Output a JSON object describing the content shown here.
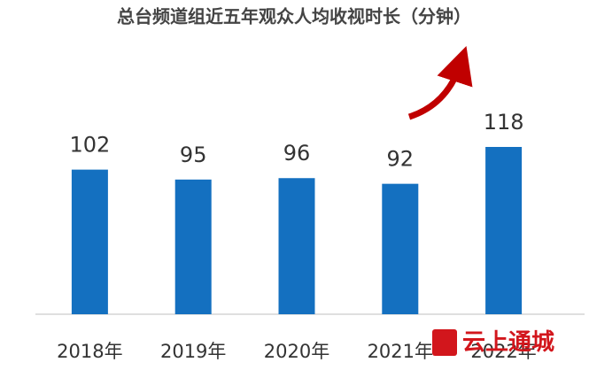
{
  "chart_data": {
    "type": "bar",
    "title": "总台频道组近五年观众人均收视时长（分钟）",
    "categories": [
      "2018年",
      "2019年",
      "2020年",
      "2021年",
      "2022年"
    ],
    "values": [
      102,
      95,
      96,
      92,
      118
    ],
    "color": "#1470c0"
  },
  "watermark": "云上通城"
}
